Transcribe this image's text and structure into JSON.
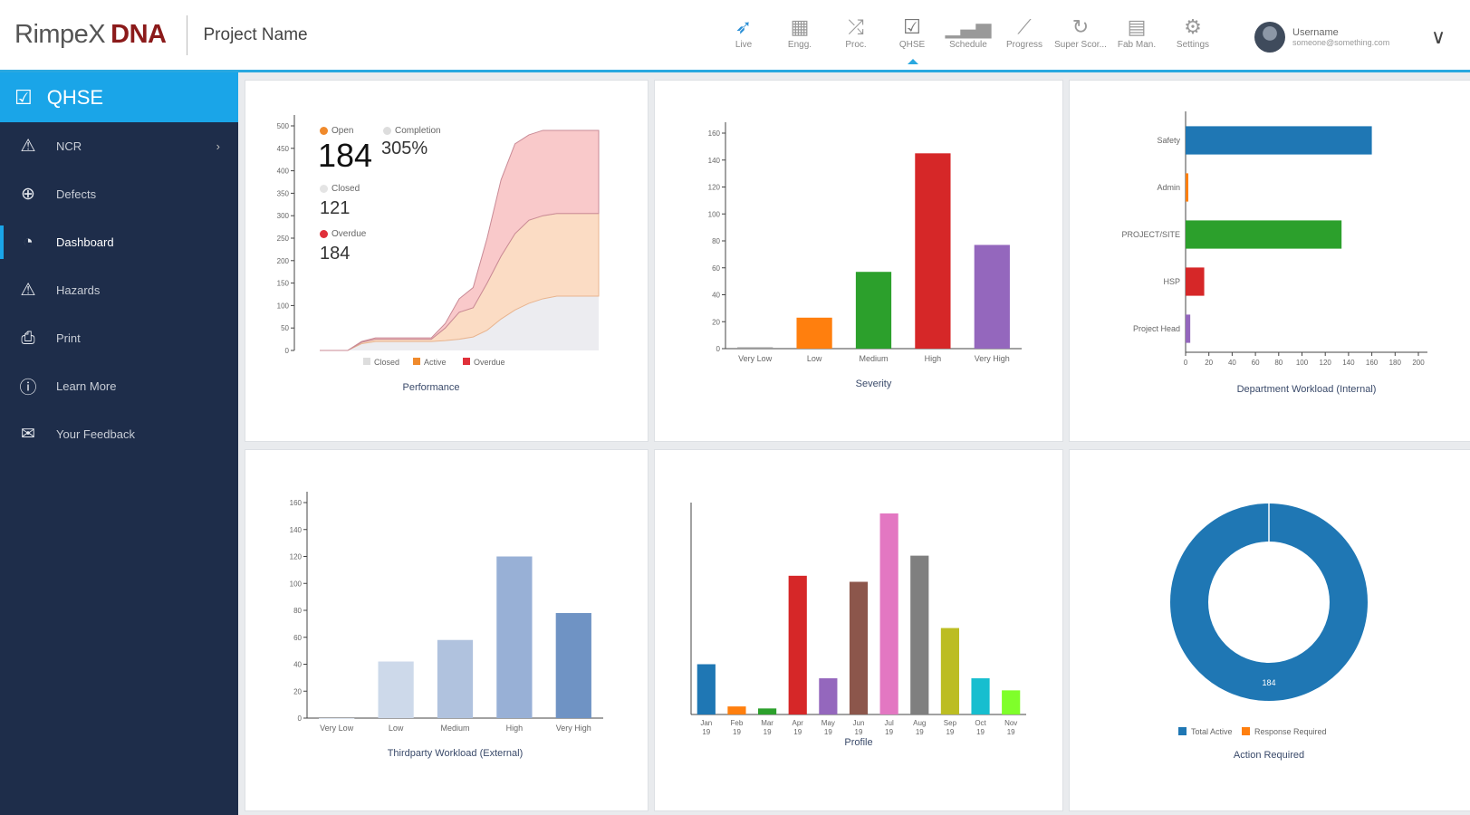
{
  "header": {
    "logo_text": "RimpeX",
    "logo_bold": "DNA",
    "project": "Project Name",
    "nav": [
      {
        "label": "Live",
        "icon": "rocket-icon",
        "glyph": "➶"
      },
      {
        "label": "Engg.",
        "icon": "blueprint-icon",
        "glyph": "▦"
      },
      {
        "label": "Proc.",
        "icon": "shuffle-icon",
        "glyph": "⤮"
      },
      {
        "label": "QHSE",
        "icon": "check-box-icon",
        "glyph": "☑"
      },
      {
        "label": "Schedule",
        "icon": "bars-icon",
        "glyph": "▁▃▅"
      },
      {
        "label": "Progress",
        "icon": "line-chart-icon",
        "glyph": "⟋"
      },
      {
        "label": "Super Scor...",
        "icon": "refresh-icon",
        "glyph": "↻"
      },
      {
        "label": "Fab Man.",
        "icon": "grid-icon",
        "glyph": "▤"
      },
      {
        "label": "Settings",
        "icon": "gear-icon",
        "glyph": "⚙"
      }
    ],
    "user": {
      "name": "Username",
      "email": "someone@something.com"
    }
  },
  "sidebar": {
    "title": "QHSE",
    "items": [
      {
        "label": "NCR",
        "glyph": "⚠",
        "icon": "warning-icon",
        "chevron": "›"
      },
      {
        "label": "Defects",
        "glyph": "⊕",
        "icon": "crosshair-icon"
      },
      {
        "label": "Dashboard",
        "glyph": "◔",
        "icon": "dashboard-icon"
      },
      {
        "label": "Hazards",
        "glyph": "⚠",
        "icon": "hazard-icon"
      },
      {
        "label": "Print",
        "glyph": "⎙",
        "icon": "printer-icon"
      },
      {
        "label": "Learn More",
        "glyph": "ⓘ",
        "icon": "info-icon"
      },
      {
        "label": "Your Feedback",
        "glyph": "✉",
        "icon": "feedback-icon"
      }
    ]
  },
  "stats": {
    "open_label": "Open",
    "open": "184",
    "completion_label": "Completion",
    "completion": "305%",
    "closed_label": "Closed",
    "closed": "121",
    "overdue_label": "Overdue",
    "overdue": "184"
  },
  "colors": {
    "accent": "#1aa5e8",
    "sidebar": "#1e2d4a"
  },
  "chart_data": [
    {
      "type": "area",
      "title": "Performance",
      "stacked": true,
      "ylim": [
        0,
        500
      ],
      "yticks": [
        "0",
        "50",
        "100",
        "150",
        "200",
        "250",
        "300",
        "350",
        "400",
        "450",
        "500"
      ],
      "x": [
        0,
        1,
        2,
        3,
        4,
        5,
        6,
        7,
        8,
        9,
        10,
        11,
        12,
        13,
        14,
        15,
        16,
        17,
        18,
        19,
        20
      ],
      "series": [
        {
          "name": "Closed",
          "color": "#ececf0",
          "values": [
            0,
            0,
            0,
            15,
            20,
            20,
            20,
            20,
            20,
            22,
            25,
            30,
            45,
            70,
            90,
            105,
            115,
            121,
            121,
            121,
            121
          ]
        },
        {
          "name": "Active",
          "color": "#fbdcc4",
          "values": [
            0,
            0,
            0,
            3,
            5,
            5,
            5,
            5,
            5,
            28,
            60,
            65,
            105,
            140,
            170,
            185,
            185,
            184,
            184,
            184,
            184
          ]
        },
        {
          "name": "Overdue",
          "color": "#f9c9ca",
          "values": [
            0,
            0,
            0,
            2,
            3,
            3,
            3,
            3,
            3,
            10,
            30,
            45,
            100,
            170,
            200,
            190,
            190,
            185,
            185,
            185,
            185
          ]
        }
      ]
    },
    {
      "type": "bar",
      "title": "Severity",
      "categories": [
        "Very Low",
        "Low",
        "Medium",
        "High",
        "Very High"
      ],
      "values": [
        1,
        23,
        57,
        145,
        77
      ],
      "colors": [
        "#999999",
        "#ff7f0e",
        "#2ca02c",
        "#d62728",
        "#9467bd"
      ],
      "ylim": [
        0,
        160
      ],
      "yticks": [
        "0",
        "20",
        "40",
        "60",
        "80",
        "100",
        "120",
        "140",
        "160"
      ]
    },
    {
      "type": "hbar",
      "title": "Department Workload (Internal)",
      "categories": [
        "Safety",
        "Admin",
        "PROJECT/SITE",
        "HSP",
        "Project Head"
      ],
      "values": [
        160,
        2,
        134,
        16,
        4
      ],
      "colors": [
        "#1f77b4",
        "#ff7f0e",
        "#2ca02c",
        "#d62728",
        "#9467bd"
      ],
      "xlim": [
        0,
        200
      ],
      "xticks": [
        "0",
        "20",
        "40",
        "60",
        "80",
        "100",
        "120",
        "140",
        "160",
        "180",
        "200"
      ]
    },
    {
      "type": "bar",
      "title": "Thirdparty Workload (External)",
      "categories": [
        "Very Low",
        "Low",
        "Medium",
        "High",
        "Very High"
      ],
      "values": [
        0,
        42,
        58,
        120,
        78
      ],
      "colors": [
        "#dde5f0",
        "#cdd9ea",
        "#b0c2de",
        "#98b0d6",
        "#6f93c4"
      ],
      "ylim": [
        0,
        160
      ],
      "yticks": [
        "0",
        "20",
        "40",
        "60",
        "80",
        "100",
        "120",
        "140",
        "160"
      ]
    },
    {
      "type": "bar",
      "title": "Profile",
      "categories": [
        "Jan 19",
        "Feb 19",
        "Mar 19",
        "Apr 19",
        "May 19",
        "Jun 19",
        "Jul 19",
        "Aug 19",
        "Sep 19",
        "Oct 19",
        "Nov 19"
      ],
      "values": [
        25,
        4,
        3,
        69,
        18,
        66,
        100,
        79,
        43,
        18,
        12
      ],
      "colors": [
        "#1f77b4",
        "#ff7f0e",
        "#2ca02c",
        "#d62728",
        "#9467bd",
        "#8c564b",
        "#e377c2",
        "#7f7f7f",
        "#bcbd22",
        "#17becf",
        "#7fff2a"
      ],
      "ylim": [
        0,
        100
      ]
    },
    {
      "type": "pie",
      "title": "Action Required",
      "donut": true,
      "labels": [
        "Total Active",
        "Response Required"
      ],
      "values": [
        184,
        0
      ],
      "colors": [
        "#1f77b4",
        "#ff7f0e"
      ],
      "center_label": "184"
    }
  ]
}
